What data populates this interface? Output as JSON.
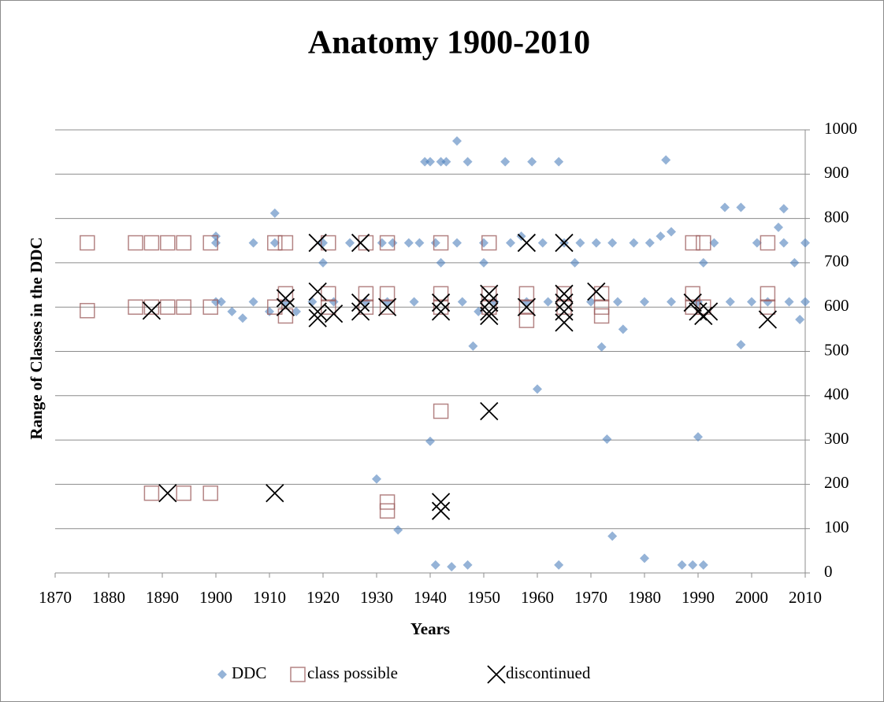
{
  "chart_data": {
    "type": "scatter",
    "title": "Anatomy 1900-2010",
    "x_label": "Years",
    "y_label": "Range of Classes in the DDC",
    "xlim": [
      1870,
      2010
    ],
    "xticks": [
      1870,
      1880,
      1890,
      1900,
      1910,
      1920,
      1930,
      1940,
      1950,
      1960,
      1970,
      1980,
      1990,
      2000,
      2010
    ],
    "ylim": [
      0,
      1000
    ],
    "yticks": [
      0,
      100,
      200,
      300,
      400,
      500,
      600,
      700,
      800,
      900,
      1000
    ],
    "grid": true,
    "y_axis_side": "right",
    "legend": "bottom",
    "series": [
      {
        "name": "DDC",
        "color": "#4f81bd",
        "marker": "diamond",
        "x": [
          1900,
          1900,
          1900,
          1901,
          1903,
          1905,
          1907,
          1907,
          1910,
          1911,
          1911,
          1913,
          1915,
          1918,
          1920,
          1920,
          1922,
          1925,
          1928,
          1930,
          1931,
          1932,
          1933,
          1934,
          1936,
          1937,
          1938,
          1939,
          1940,
          1940,
          1941,
          1941,
          1942,
          1942,
          1943,
          1944,
          1945,
          1945,
          1946,
          1947,
          1947,
          1948,
          1949,
          1950,
          1950,
          1952,
          1954,
          1955,
          1957,
          1958,
          1959,
          1960,
          1961,
          1962,
          1964,
          1964,
          1965,
          1967,
          1968,
          1970,
          1971,
          1972,
          1973,
          1974,
          1974,
          1975,
          1976,
          1978,
          1980,
          1980,
          1981,
          1983,
          1984,
          1985,
          1985,
          1987,
          1989,
          1990,
          1990,
          1991,
          1991,
          1993,
          1995,
          1996,
          1998,
          1998,
          2000,
          2001,
          2003,
          2005,
          2006,
          2006,
          2007,
          2008,
          2009,
          2010,
          2010
        ],
        "values": [
          612,
          745,
          760,
          612,
          590,
          575,
          612,
          745,
          590,
          812,
          745,
          612,
          590,
          612,
          700,
          745,
          612,
          745,
          612,
          212,
          745,
          612,
          745,
          97,
          745,
          612,
          745,
          928,
          928,
          297,
          18,
          745,
          928,
          700,
          928,
          14,
          975,
          745,
          612,
          928,
          18,
          512,
          590,
          700,
          745,
          612,
          928,
          745,
          760,
          612,
          928,
          415,
          745,
          612,
          928,
          18,
          745,
          700,
          745,
          612,
          745,
          510,
          302,
          83,
          745,
          612,
          550,
          745,
          33,
          612,
          745,
          760,
          932,
          770,
          612,
          18,
          18,
          307,
          612,
          18,
          700,
          745,
          825,
          612,
          825,
          515,
          612,
          745,
          612,
          780,
          822,
          745,
          612,
          700,
          572,
          612,
          745
        ]
      },
      {
        "name": "class possible",
        "color": "#9b5b5b",
        "marker": "square",
        "x": [
          1876,
          1876,
          1885,
          1885,
          1888,
          1888,
          1888,
          1891,
          1891,
          1894,
          1894,
          1894,
          1899,
          1899,
          1899,
          1911,
          1911,
          1913,
          1913,
          1913,
          1921,
          1921,
          1921,
          1928,
          1928,
          1928,
          1932,
          1932,
          1932,
          1932,
          1932,
          1942,
          1942,
          1942,
          1942,
          1951,
          1951,
          1951,
          1958,
          1958,
          1958,
          1965,
          1965,
          1972,
          1972,
          1972,
          1989,
          1989,
          1989,
          1991,
          1991,
          2003,
          2003,
          2003
        ],
        "values": [
          745,
          592,
          745,
          600,
          745,
          180,
          600,
          745,
          600,
          745,
          600,
          180,
          745,
          600,
          180,
          745,
          600,
          745,
          630,
          580,
          745,
          600,
          630,
          745,
          600,
          630,
          745,
          600,
          630,
          160,
          140,
          745,
          630,
          600,
          365,
          745,
          630,
          600,
          630,
          600,
          570,
          630,
          600,
          630,
          600,
          580,
          745,
          630,
          600,
          745,
          600,
          745,
          630,
          600
        ]
      },
      {
        "name": "discontinued",
        "color": "#000000",
        "marker": "x",
        "x": [
          1888,
          1891,
          1911,
          1913,
          1913,
          1919,
          1919,
          1919,
          1919,
          1922,
          1927,
          1927,
          1927,
          1932,
          1942,
          1942,
          1942,
          1942,
          1951,
          1951,
          1951,
          1951,
          1951,
          1958,
          1958,
          1965,
          1965,
          1965,
          1965,
          1965,
          1971,
          1989,
          1990,
          1991,
          1992,
          2003
        ],
        "values": [
          592,
          180,
          180,
          600,
          620,
          745,
          635,
          590,
          575,
          585,
          745,
          610,
          590,
          600,
          160,
          140,
          610,
          590,
          365,
          630,
          610,
          590,
          580,
          745,
          600,
          745,
          630,
          610,
          590,
          565,
          635,
          610,
          590,
          580,
          590,
          572
        ]
      }
    ]
  }
}
